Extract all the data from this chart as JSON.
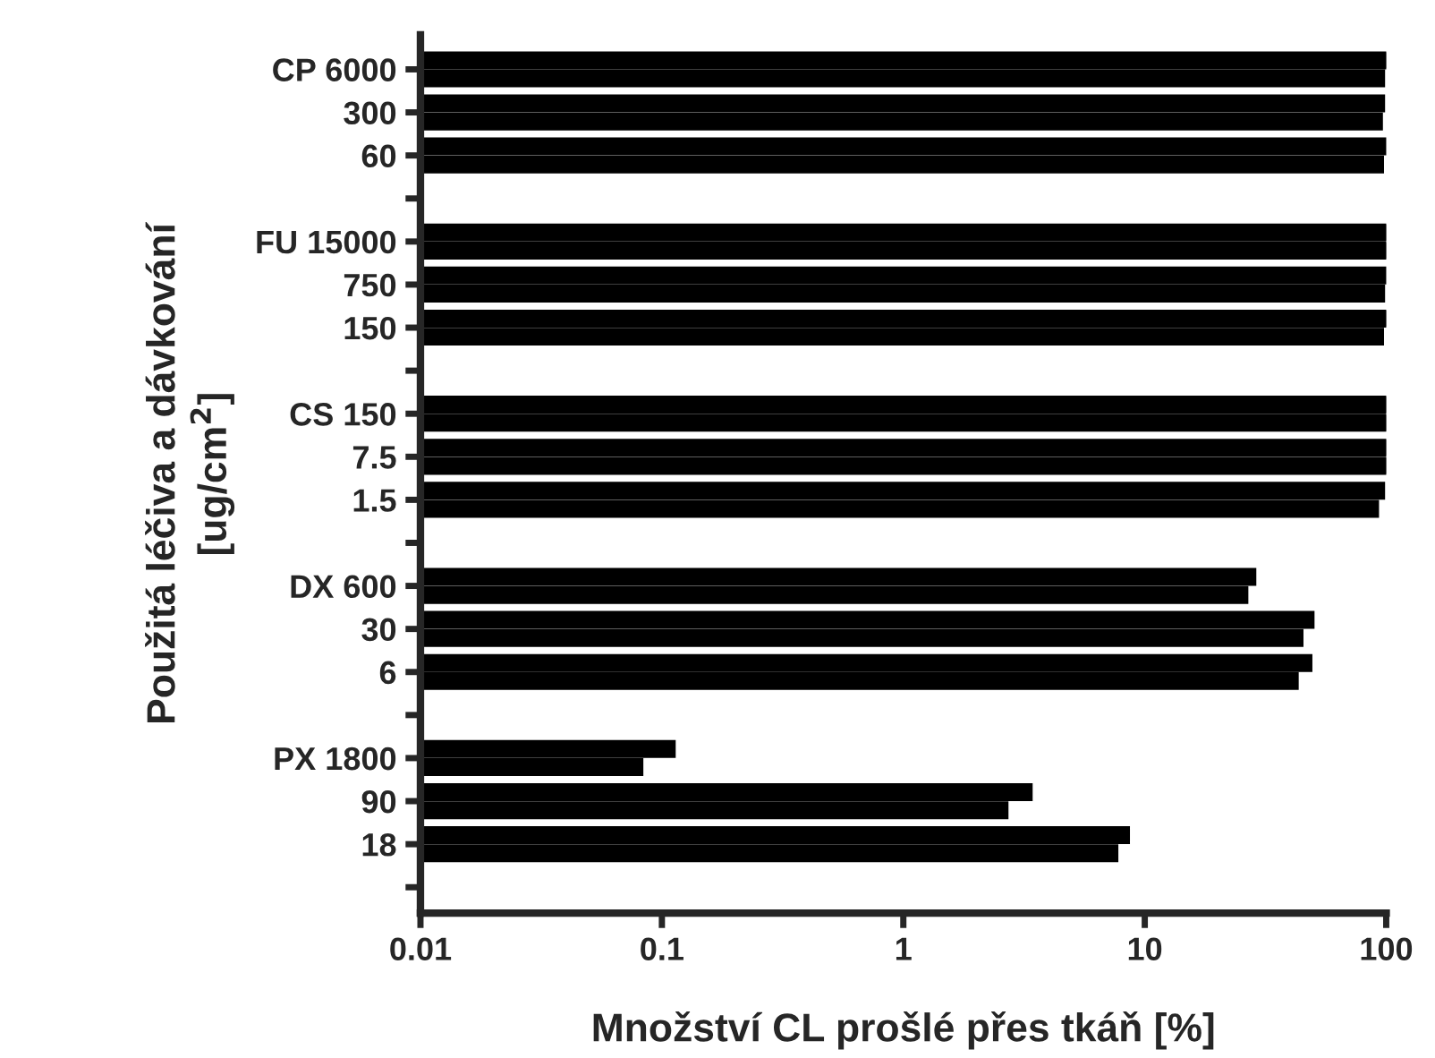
{
  "chart_data": {
    "type": "bar",
    "orientation": "horizontal",
    "log": "x",
    "xlabel": "Množství CL prošlé přes tkáň [%]",
    "ylabel": "Použitá léčiva a dávkování\n[ug/cm$^{2}$]",
    "categories": [
      "CP 6000",
      "300",
      "60",
      null,
      "FU 15000",
      "750",
      "150",
      null,
      "CS 150",
      "7.5",
      "1.5",
      null,
      "DX 600",
      "30",
      "6",
      null,
      "PX 1800",
      "90",
      "18",
      null
    ],
    "series": [
      {
        "color": "#000000",
        "values": [
          100,
          98,
          99.6,
          null,
          100,
          99.5,
          100,
          null,
          100,
          100,
          98,
          null,
          28.7,
          50,
          49,
          null,
          0.113,
          3.4,
          8.6,
          null
        ]
      },
      {
        "color": "#000000",
        "values": [
          98,
          96,
          97,
          null,
          100,
          98,
          97,
          null,
          100,
          100,
          92.5,
          null,
          26.6,
          45,
          43,
          null,
          0.083,
          2.7,
          7.7,
          null
        ]
      }
    ],
    "xlim": [
      0.01,
      100
    ],
    "xticks": [
      {
        "value": 0.01,
        "label": "0.01"
      },
      {
        "value": 0.1,
        "label": "0.1"
      },
      {
        "value": 1,
        "label": "1"
      },
      {
        "value": 10,
        "label": "10"
      },
      {
        "value": 100,
        "label": "100"
      }
    ],
    "grid": false,
    "legend": false
  }
}
